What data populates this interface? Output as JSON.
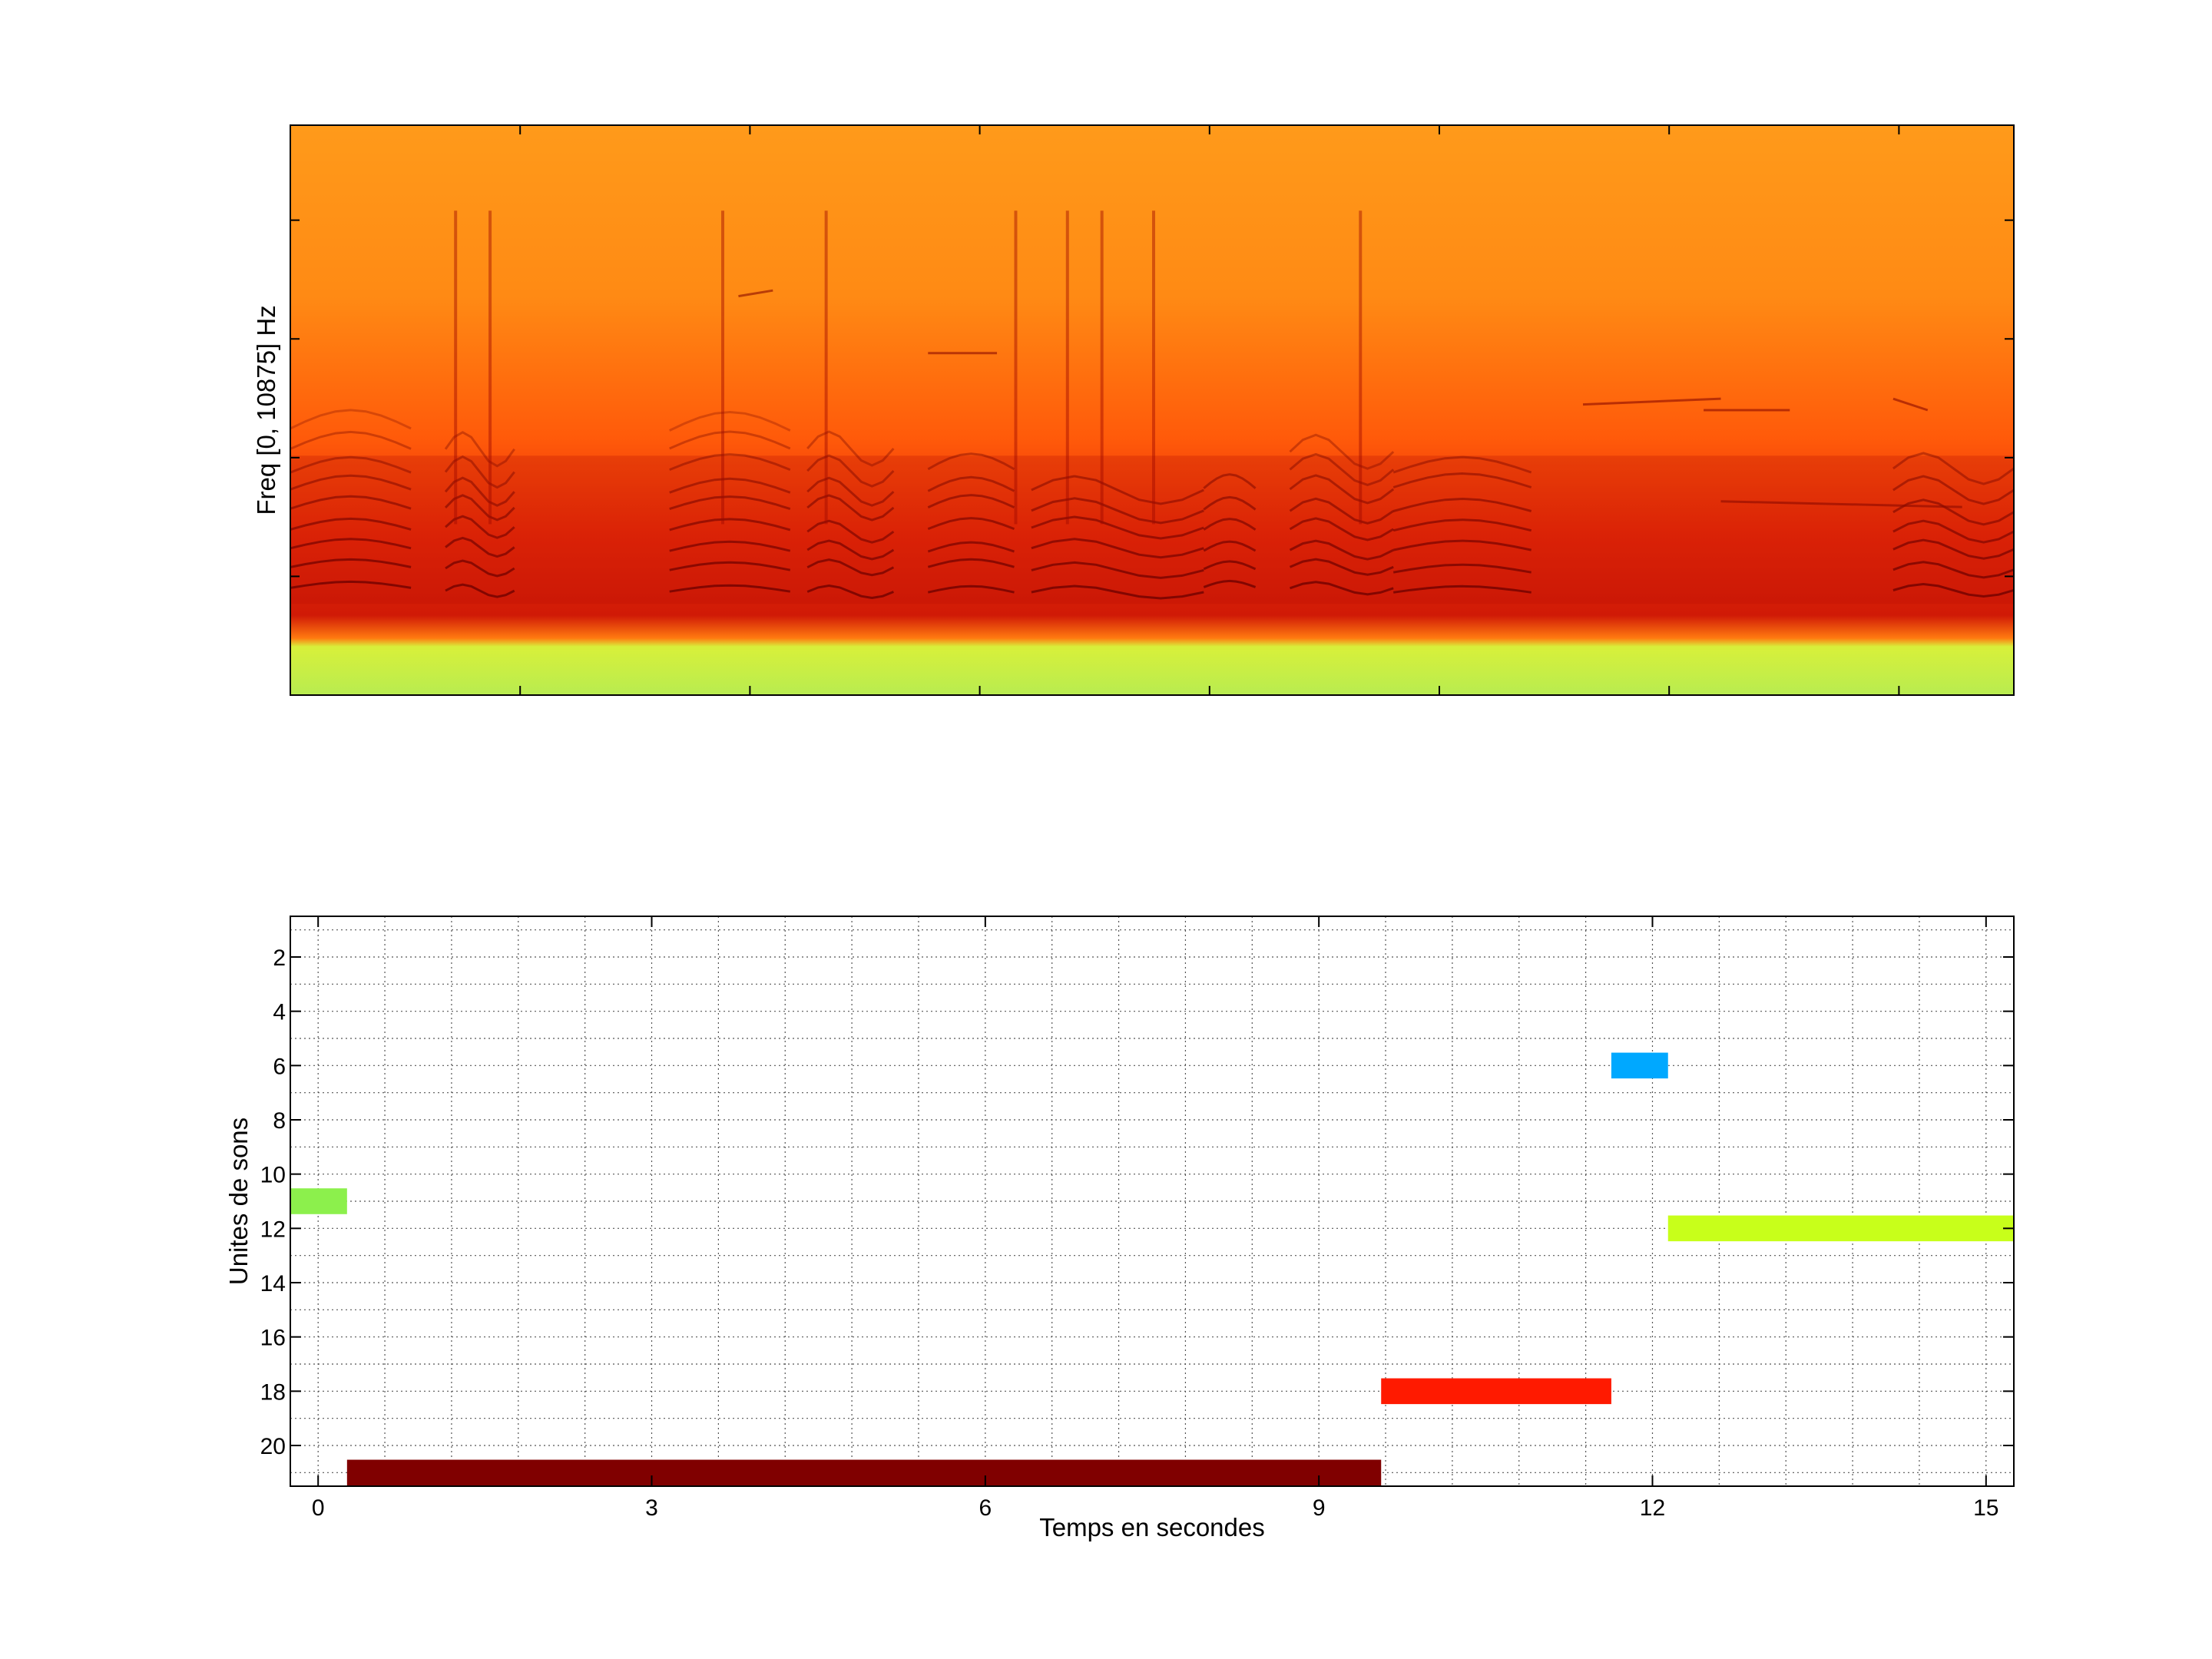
{
  "chart_data": [
    {
      "type": "heatmap",
      "title": "",
      "xlabel": "",
      "ylabel": "Freq [0, 10875] Hz",
      "ylim": [
        0,
        10875
      ],
      "colormap": "jet-hot (green/yellow low, orange mid, dark red high)",
      "colors": {
        "low": "#c8f044",
        "mid": "#ff9a1a",
        "high": "#8c0000"
      },
      "note_bands": "dark harmonic stacks in lower third, green band at bottom"
    },
    {
      "type": "bar",
      "orientation": "horizontal",
      "title": "",
      "xlabel": "Temps en secondes",
      "ylabel": "Unites de sons",
      "xlim": [
        -0.25,
        15.25
      ],
      "ylim": [
        21.5,
        0.5
      ],
      "x_ticks": [
        0,
        3,
        6,
        9,
        12,
        15
      ],
      "y_ticks": [
        2,
        4,
        6,
        8,
        10,
        12,
        14,
        16,
        18,
        20
      ],
      "grid": true,
      "segments": [
        {
          "unit": 11,
          "start": -0.25,
          "end": 0.26,
          "color": "#8cf04c"
        },
        {
          "unit": 21,
          "start": 0.26,
          "end": 9.56,
          "color": "#800000"
        },
        {
          "unit": 18,
          "start": 9.56,
          "end": 11.63,
          "color": "#ff1a00"
        },
        {
          "unit": 6,
          "start": 11.63,
          "end": 12.14,
          "color": "#00a8ff"
        },
        {
          "unit": 12,
          "start": 12.14,
          "end": 15.25,
          "color": "#c8ff1a"
        }
      ]
    }
  ]
}
